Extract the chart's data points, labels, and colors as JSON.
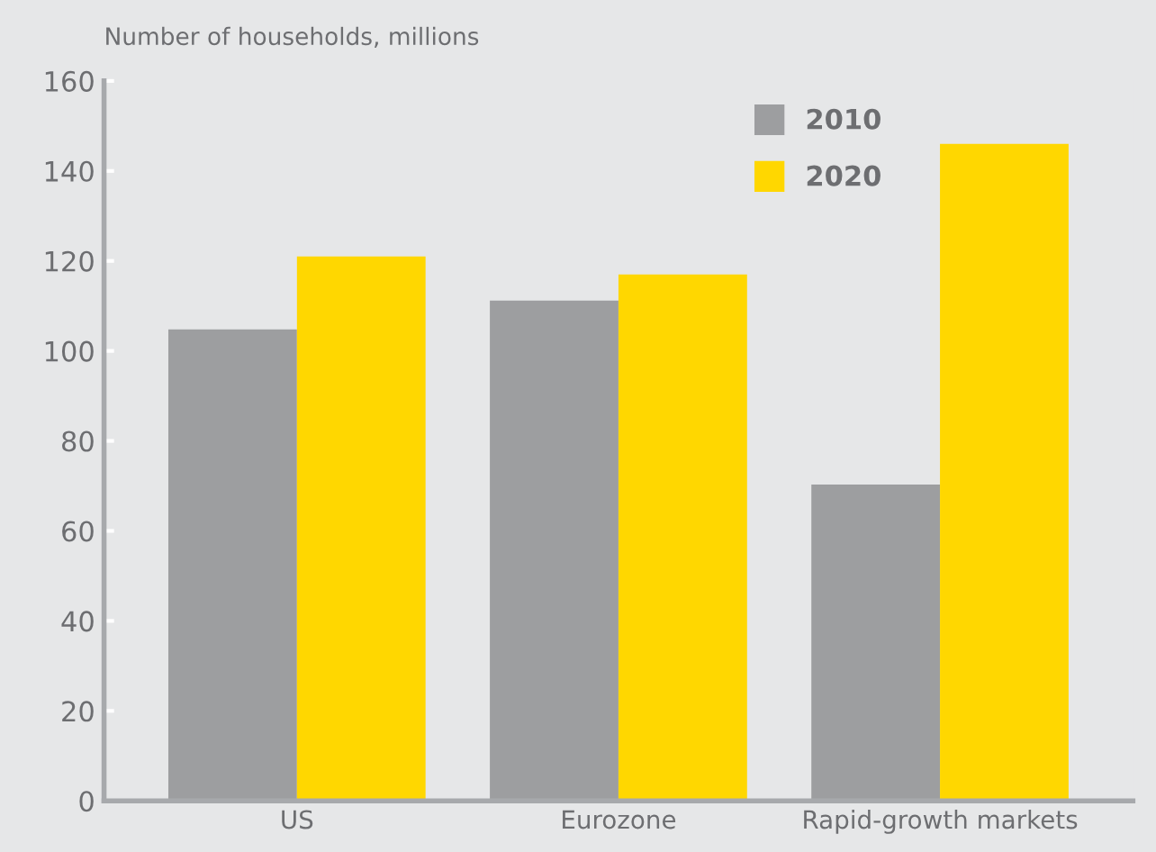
{
  "chart_data": {
    "type": "bar",
    "ylabel": "Number of households, millions",
    "categories": [
      "US",
      "Eurozone",
      "Rapid-growth markets"
    ],
    "series": [
      {
        "name": "2010",
        "color": "#9d9ea0",
        "values": [
          104.8,
          111.2,
          70.3
        ]
      },
      {
        "name": "2020",
        "color": "#ffd700",
        "values": [
          121,
          117,
          146
        ]
      }
    ],
    "ylim": [
      0,
      160
    ],
    "yticks": [
      0,
      20,
      40,
      60,
      80,
      100,
      120,
      140,
      160
    ],
    "grid": false,
    "legend": "top right"
  }
}
